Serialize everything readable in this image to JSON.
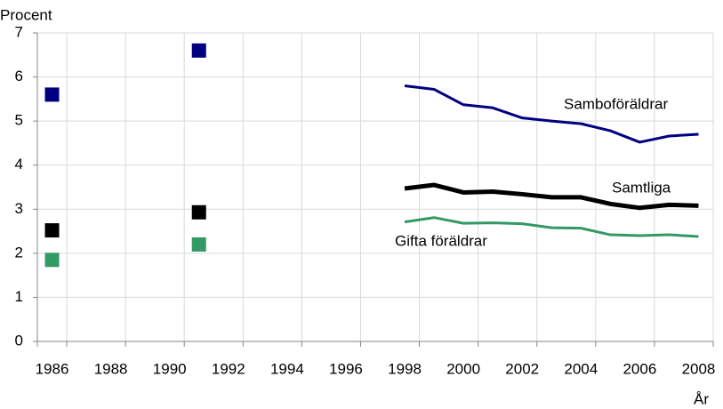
{
  "chart_data": {
    "type": "line",
    "y_label": "Procent",
    "x_label": "År",
    "categories": [
      "1986",
      null,
      "1988",
      null,
      "1990",
      null,
      "1992",
      null,
      "1994",
      null,
      "1996",
      null,
      "1998",
      null,
      "2000",
      null,
      "2002",
      null,
      "2004",
      null,
      "2006",
      null,
      "2008"
    ],
    "series": [
      {
        "name": "Samboföräldrar",
        "color": "#000080",
        "values": [
          5.6,
          null,
          null,
          null,
          null,
          6.6,
          null,
          null,
          null,
          null,
          null,
          null,
          5.8,
          5.72,
          5.37,
          5.3,
          5.07,
          5.0,
          4.94,
          4.78,
          4.52,
          4.66,
          4.7
        ]
      },
      {
        "name": "Samtliga",
        "color": "#000000",
        "values": [
          2.52,
          null,
          null,
          null,
          null,
          2.93,
          null,
          null,
          null,
          null,
          null,
          null,
          3.47,
          3.55,
          3.38,
          3.4,
          3.34,
          3.27,
          3.27,
          3.12,
          3.03,
          3.1,
          3.08
        ]
      },
      {
        "name": "Gifta föräldrar",
        "color": "#339966",
        "values": [
          1.85,
          null,
          null,
          null,
          null,
          2.2,
          null,
          null,
          null,
          null,
          null,
          null,
          2.71,
          2.81,
          2.68,
          2.69,
          2.67,
          2.58,
          2.57,
          2.42,
          2.4,
          2.42,
          2.38
        ]
      }
    ],
    "ylim": [
      0,
      7
    ],
    "yticks": [
      0,
      1,
      2,
      3,
      4,
      5,
      6,
      7
    ],
    "grid": true
  }
}
